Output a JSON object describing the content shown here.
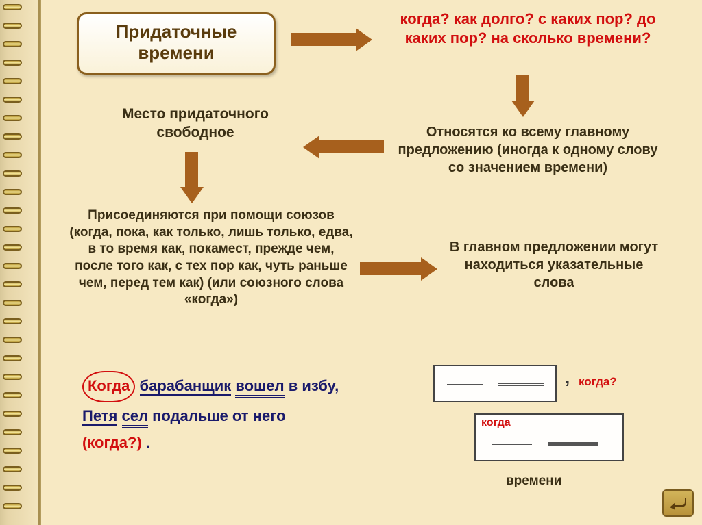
{
  "title": {
    "line1": "Придаточные",
    "line2": "времени"
  },
  "questions": "когда? как долго? с каких пор? до каких пор? на сколько времени?",
  "relates": "Относятся ко всему главному предложению (иногда к одному слову со значением времени)",
  "position": "Место придаточного свободное",
  "joins": "Присоединяются при помощи союзов (когда, пока, как только, лишь только, едва, в то время как, покамест, прежде чем, после того как, с тех пор как, чуть раньше чем, перед тем как) (или союзного слова «когда»)",
  "indic": "В главном предложении могут находиться указательные слова",
  "example": {
    "w1": "Когда",
    "w2": "барабанщик",
    "w3": "вошел",
    "w4": "в избу,",
    "w5": "Петя",
    "w6": "сел",
    "w7": "подальше от него",
    "q": "(когда?)"
  },
  "schema": {
    "q": "когда?",
    "conj": "когда",
    "cap": "времени"
  },
  "colors": {
    "bg": "#f7e9c3",
    "spine": "#eeddb7",
    "border": "#8a5f1d",
    "arrow": "#a7601d",
    "red": "#d20f0f",
    "dark": "#3a2f15",
    "blue": "#1a1a6b"
  }
}
